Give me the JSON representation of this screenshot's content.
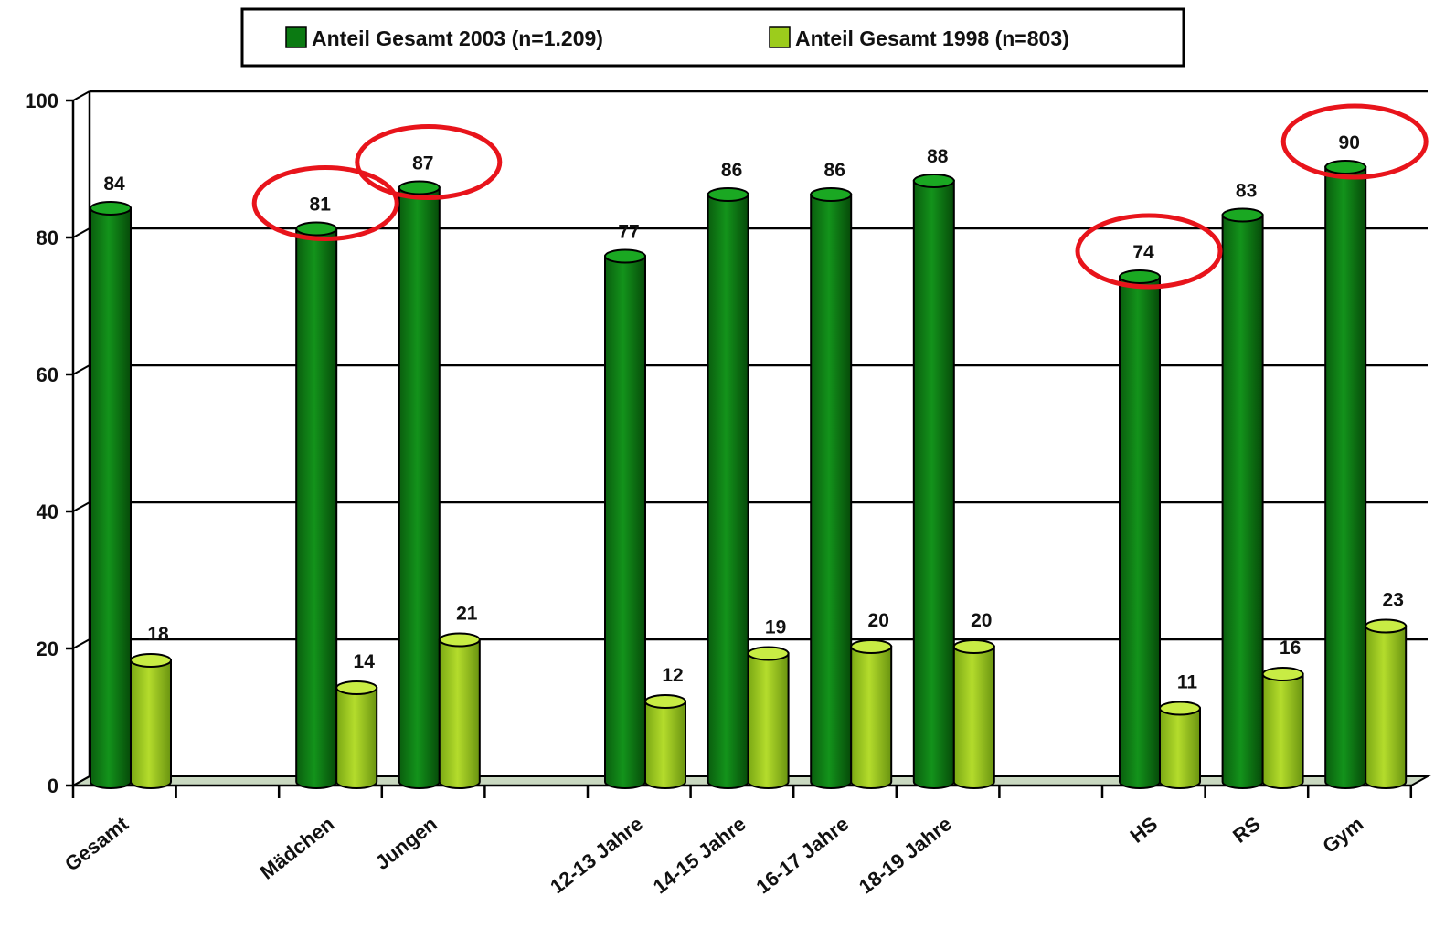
{
  "chart_data": {
    "type": "bar",
    "categories": [
      "Gesamt",
      "Mädchen",
      "Jungen",
      "12-13 Jahre",
      "14-15 Jahre",
      "16-17 Jahre",
      "18-19 Jahre",
      "HS",
      "RS",
      "Gym"
    ],
    "series": [
      {
        "name": "Anteil Gesamt 2003 (n=1.209)",
        "values": [
          84,
          81,
          87,
          77,
          86,
          86,
          88,
          74,
          83,
          90
        ],
        "color": "#0b7a12"
      },
      {
        "name": "Anteil Gesamt 1998 (n=803)",
        "values": [
          18,
          14,
          21,
          12,
          19,
          20,
          20,
          11,
          16,
          23
        ],
        "color": "#9ccc1c"
      }
    ],
    "y_ticks": [
      "0",
      "20",
      "40",
      "60",
      "80",
      "100"
    ],
    "ylim": [
      0,
      100
    ],
    "grid": true,
    "legend_position": "top-center",
    "highlighted": [
      {
        "category": "Mädchen",
        "series": 0
      },
      {
        "category": "Jungen",
        "series": 0
      },
      {
        "category": "HS",
        "series": 0
      },
      {
        "category": "Gym",
        "series": 0
      }
    ],
    "highlight_color": "#e8141b"
  }
}
